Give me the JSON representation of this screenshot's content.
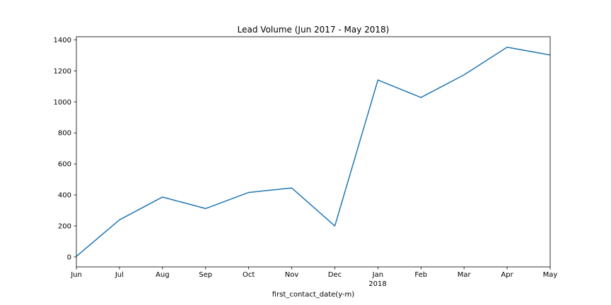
{
  "chart_data": {
    "type": "line",
    "title": "Lead Volume (Jun 2017 - May 2018)",
    "xlabel": "first_contact_date(y-m)",
    "ylabel": "",
    "x": [
      "2017-06",
      "2017-07",
      "2017-08",
      "2017-09",
      "2017-10",
      "2017-11",
      "2017-12",
      "2018-01",
      "2018-02",
      "2018-03",
      "2018-04",
      "2018-05"
    ],
    "x_tick_labels": [
      "Jun",
      "Jul",
      "Aug",
      "Sep",
      "Oct",
      "Nov",
      "Dec",
      "Jan",
      "Feb",
      "Mar",
      "Apr",
      "May"
    ],
    "x_year_label": "2018",
    "series": [
      {
        "values": [
          4,
          239,
          386,
          312,
          416,
          445,
          200,
          1141,
          1028,
          1174,
          1352,
          1302
        ],
        "color": "#1f77b4"
      }
    ],
    "yticks": [
      0,
      200,
      400,
      600,
      800,
      1000,
      1200,
      1400
    ],
    "ylim": [
      -64,
      1420
    ],
    "grid": false
  }
}
